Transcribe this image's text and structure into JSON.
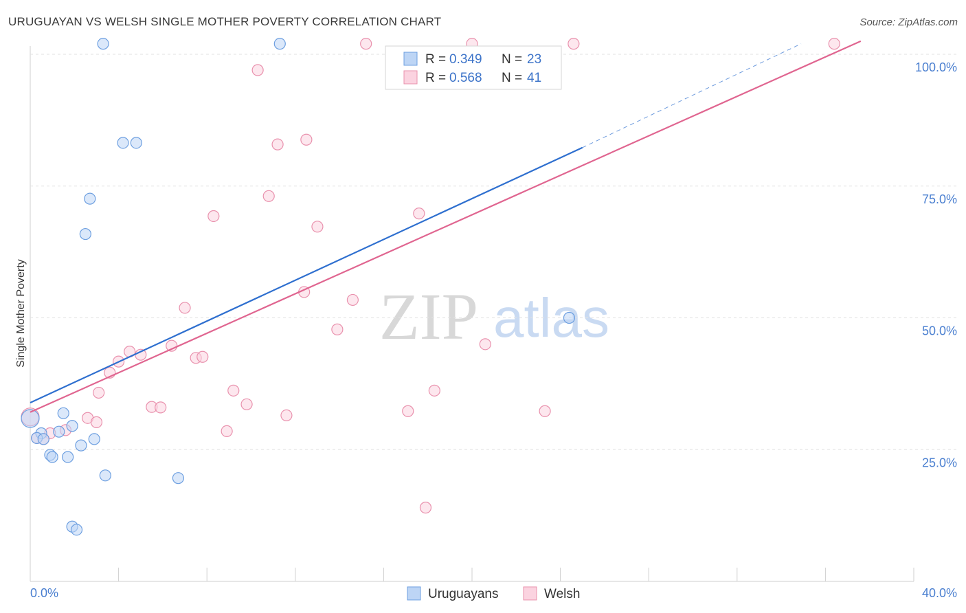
{
  "header": {
    "title": "URUGUAYAN VS WELSH SINGLE MOTHER POVERTY CORRELATION CHART",
    "source": "Source: ZipAtlas.com"
  },
  "watermark": {
    "zip": "ZIP",
    "atlas": "atlas"
  },
  "legend": {
    "rows": [
      {
        "r_label": "R =",
        "r_value": "0.349",
        "n_label": "N =",
        "n_value": "23",
        "color": "#a9c8f2"
      },
      {
        "r_label": "R =",
        "r_value": "0.568",
        "n_label": "N =",
        "n_value": "41",
        "color": "#f6bccd"
      }
    ]
  },
  "bottom_legend": [
    {
      "label": "Uruguayans",
      "color": "#a9c8f2"
    },
    {
      "label": "Welsh",
      "color": "#f6bccd"
    }
  ],
  "chart_data": {
    "type": "scatter",
    "title": "URUGUAYAN VS WELSH SINGLE MOTHER POVERTY CORRELATION CHART",
    "xlabel": "",
    "ylabel": "Single Mother Poverty",
    "xlim": [
      0,
      40
    ],
    "ylim": [
      0,
      100
    ],
    "x_tick_labels": [
      "0.0%",
      "40.0%"
    ],
    "y_ticks": [
      25,
      50,
      75,
      100
    ],
    "y_tick_labels": [
      "25.0%",
      "50.0%",
      "75.0%",
      "100.0%"
    ],
    "grid": "horizontal dashed",
    "legend_position": "top-center",
    "series": [
      {
        "name": "Uruguayans",
        "color": "#6d9fe0",
        "fill": "#bdd5f5",
        "trend_color": "#2e6fcf",
        "trend": {
          "x0": 0,
          "y0": 33.9,
          "x1": 25.0,
          "y1": 82.3,
          "dash_to_x": 34.9,
          "dash_to_y": 102.0
        },
        "points": [
          [
            3.3,
            102.0
          ],
          [
            11.3,
            102.0
          ],
          [
            4.2,
            83.2
          ],
          [
            4.8,
            83.2
          ],
          [
            2.7,
            72.6
          ],
          [
            2.5,
            65.9
          ],
          [
            24.4,
            50.0
          ],
          [
            1.5,
            31.9
          ],
          [
            0.0,
            30.9
          ],
          [
            1.9,
            29.5
          ],
          [
            1.3,
            28.4
          ],
          [
            0.5,
            28.1
          ],
          [
            0.3,
            27.2
          ],
          [
            0.6,
            27.0
          ],
          [
            2.9,
            27.0
          ],
          [
            2.3,
            25.8
          ],
          [
            0.9,
            24.0
          ],
          [
            1.0,
            23.6
          ],
          [
            1.7,
            23.6
          ],
          [
            3.4,
            20.1
          ],
          [
            6.7,
            19.6
          ],
          [
            1.9,
            10.4
          ],
          [
            2.1,
            9.8
          ]
        ]
      },
      {
        "name": "Welsh",
        "color": "#e991ad",
        "fill": "#fbd3e0",
        "trend_color": "#e06590",
        "trend": {
          "x0": 0,
          "y0": 32.1,
          "x1": 37.6,
          "y1": 102.5
        },
        "points": [
          [
            15.2,
            102.0
          ],
          [
            20.0,
            102.0
          ],
          [
            24.6,
            102.0
          ],
          [
            36.4,
            102.0
          ],
          [
            10.3,
            97.0
          ],
          [
            12.5,
            83.8
          ],
          [
            11.2,
            82.9
          ],
          [
            10.8,
            73.1
          ],
          [
            8.3,
            69.3
          ],
          [
            17.6,
            69.8
          ],
          [
            13.0,
            67.3
          ],
          [
            12.4,
            54.9
          ],
          [
            14.6,
            53.4
          ],
          [
            7.0,
            51.9
          ],
          [
            13.9,
            47.8
          ],
          [
            20.6,
            45.0
          ],
          [
            6.4,
            44.7
          ],
          [
            4.5,
            43.6
          ],
          [
            5.0,
            43.0
          ],
          [
            7.5,
            42.4
          ],
          [
            7.8,
            42.6
          ],
          [
            4.0,
            41.7
          ],
          [
            3.6,
            39.6
          ],
          [
            3.1,
            35.8
          ],
          [
            9.2,
            36.2
          ],
          [
            18.3,
            36.2
          ],
          [
            9.8,
            33.6
          ],
          [
            5.5,
            33.1
          ],
          [
            5.9,
            33.0
          ],
          [
            23.3,
            32.3
          ],
          [
            17.1,
            32.3
          ],
          [
            11.6,
            31.5
          ],
          [
            2.6,
            31.0
          ],
          [
            3.0,
            30.2
          ],
          [
            8.9,
            28.5
          ],
          [
            1.6,
            28.7
          ],
          [
            0.9,
            28.1
          ],
          [
            0.3,
            27.2
          ],
          [
            0.6,
            27.0
          ],
          [
            0.0,
            31.2
          ],
          [
            17.9,
            14.0
          ]
        ]
      }
    ]
  }
}
